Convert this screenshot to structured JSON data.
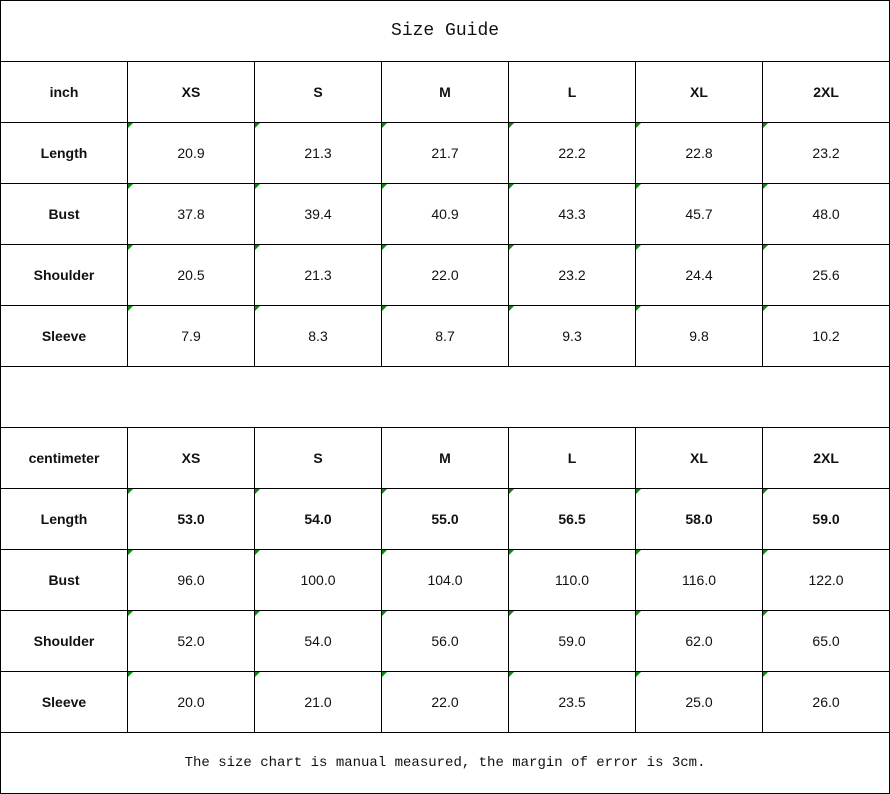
{
  "title": "Size Guide",
  "inch": {
    "header": [
      "inch",
      "XS",
      "S",
      "M",
      "L",
      "XL",
      "2XL"
    ],
    "rows": [
      {
        "label": "Length",
        "values": [
          "20.9",
          "21.3",
          "21.7",
          "22.2",
          "22.8",
          "23.2"
        ]
      },
      {
        "label": "Bust",
        "values": [
          "37.8",
          "39.4",
          "40.9",
          "43.3",
          "45.7",
          "48.0"
        ]
      },
      {
        "label": "Shoulder",
        "values": [
          "20.5",
          "21.3",
          "22.0",
          "23.2",
          "24.4",
          "25.6"
        ]
      },
      {
        "label": "Sleeve",
        "values": [
          "7.9",
          "8.3",
          "8.7",
          "9.3",
          "9.8",
          "10.2"
        ]
      }
    ]
  },
  "cm": {
    "header": [
      "centimeter",
      "XS",
      "S",
      "M",
      "L",
      "XL",
      "2XL"
    ],
    "rows": [
      {
        "label": "Length",
        "values": [
          "53.0",
          "54.0",
          "55.0",
          "56.5",
          "58.0",
          "59.0"
        ]
      },
      {
        "label": "Bust",
        "values": [
          "96.0",
          "100.0",
          "104.0",
          "110.0",
          "116.0",
          "122.0"
        ]
      },
      {
        "label": "Shoulder",
        "values": [
          "52.0",
          "54.0",
          "56.0",
          "59.0",
          "62.0",
          "65.0"
        ]
      },
      {
        "label": "Sleeve",
        "values": [
          "20.0",
          "21.0",
          "22.0",
          "23.5",
          "25.0",
          "26.0"
        ]
      }
    ]
  },
  "footer": "The size chart is manual measured, the margin of error is 3cm.",
  "colors": {
    "border": "#000000",
    "cell_marker": "#0a8a0a"
  }
}
